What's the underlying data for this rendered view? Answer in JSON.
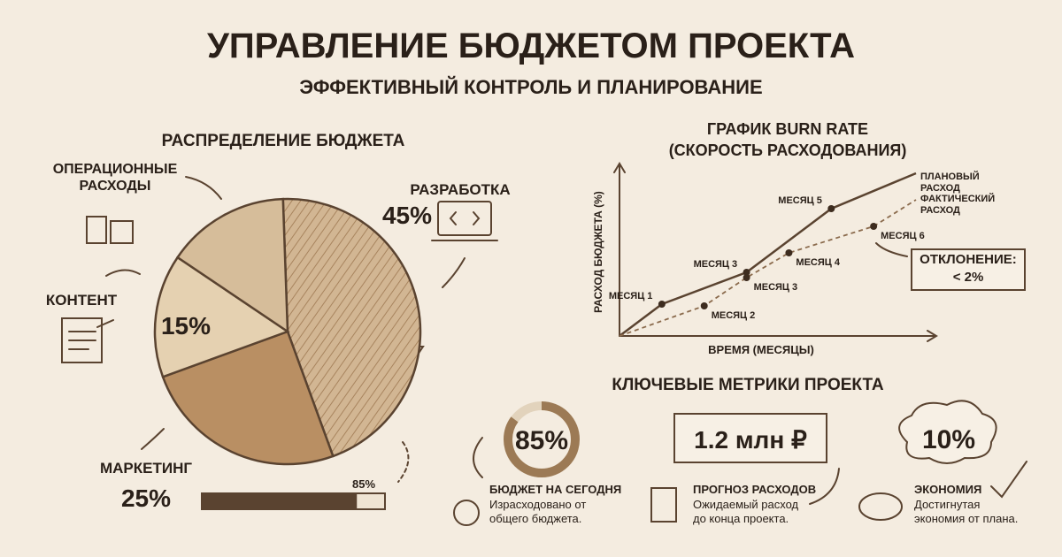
{
  "header": {
    "title": "УПРАВЛЕНИЕ БЮДЖЕТОМ ПРОЕКТА",
    "subtitle": "ЭФФЕКТИВНЫЙ КОНТРОЛЬ И ПЛАНИРОВАНИЕ"
  },
  "chart_data": [
    {
      "type": "pie",
      "title": "РАСПРЕДЕЛЕНИЕ БЮДЖЕТА",
      "categories": [
        "РАЗРАБОТКА",
        "МАРКЕТИНГ",
        "КОНТЕНТ",
        "ОПЕРАЦИОННЫЕ РАСХОДЫ"
      ],
      "values": [
        45,
        25,
        15,
        15
      ],
      "value_labels": [
        "45%",
        "25%",
        "15%",
        null
      ],
      "colors": [
        "#cfb28e",
        "#b98f63",
        "#e5d1b1",
        "#d6bd9a"
      ]
    },
    {
      "type": "line",
      "title": [
        "ГРАФИК BURN RATE",
        "(СКОРОСТЬ РАСХОДОВАНИЯ)"
      ],
      "x_label": "ВРЕМЯ (МЕСЯЦЫ)",
      "y_label": "РАСХОД БЮДЖЕТА (%)",
      "xlim": [
        0,
        7
      ],
      "ylim": [
        0,
        100
      ],
      "series": [
        {
          "name": "ПЛАНОВЫЙ РАСХОД",
          "color": "#5a4330",
          "x": [
            0,
            1,
            3,
            5,
            7
          ],
          "values": [
            0,
            18,
            36,
            72,
            92
          ],
          "point_labels": [
            null,
            "МЕСЯЦ 1",
            "МЕСЯЦ 3",
            "МЕСЯЦ 5",
            null
          ]
        },
        {
          "name": "ФАКТИЧЕСКИЙ РАСХОД",
          "color": "#8a6a4c",
          "x": [
            0,
            2,
            3,
            4,
            6,
            7
          ],
          "values": [
            0,
            17,
            33,
            47,
            62,
            77
          ],
          "point_labels": [
            null,
            "МЕСЯЦ 2",
            "МЕСЯЦ 3",
            "МЕСЯЦ 4",
            "МЕСЯЦ 6",
            null
          ]
        }
      ],
      "annotation": [
        "ОТКЛОНЕНИЕ:",
        "< 2%"
      ]
    }
  ],
  "progress": {
    "value": 85,
    "value_label": "85%"
  },
  "metrics": {
    "title": "КЛЮЧЕВЫЕ МЕТРИКИ ПРОЕКТА",
    "items": [
      {
        "value": 85,
        "value_label": "85%",
        "label": "БЮДЖЕТ НА СЕГОДНЯ",
        "description": [
          "Израсходовано от",
          "общего бюджета."
        ]
      },
      {
        "value_label": "1.2 млн ₽",
        "label": "ПРОГНОЗ РАСХОДОВ",
        "description": [
          "Ожидаемый расход",
          "до конца проекта."
        ]
      },
      {
        "value_label": "10%",
        "label": "ЭКОНОМИЯ",
        "description": [
          "Достигнутая",
          "экономия от плана."
        ]
      }
    ]
  }
}
